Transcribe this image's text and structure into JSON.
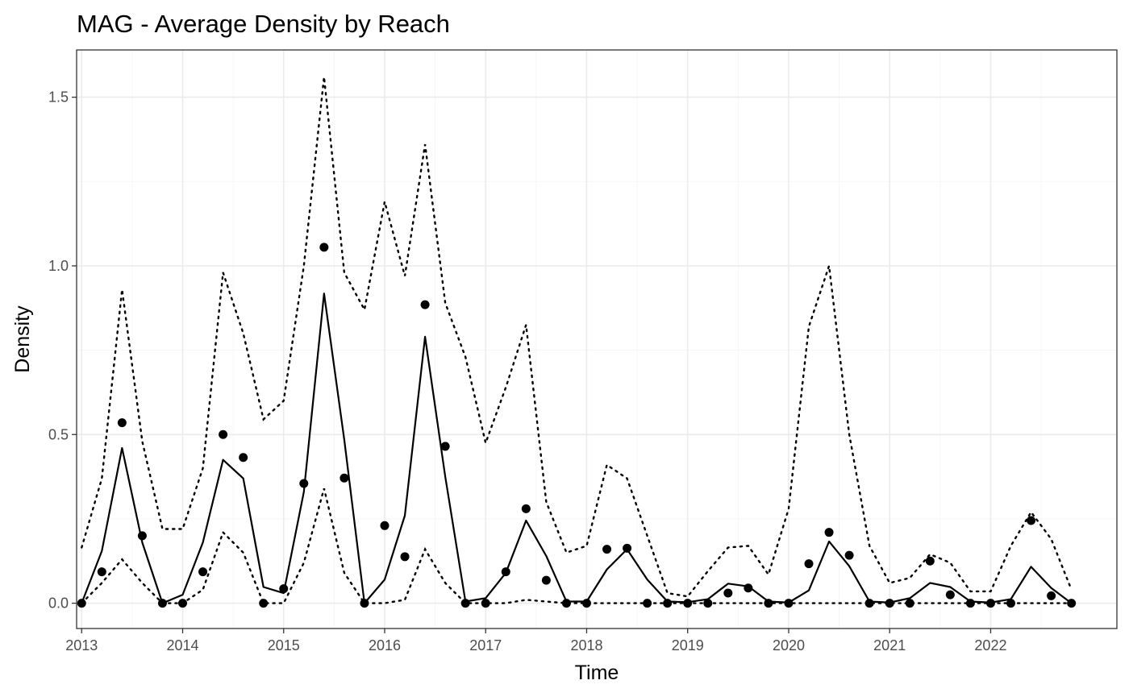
{
  "chart_data": {
    "type": "line",
    "title": "MAG - Average Density by Reach",
    "xlabel": "Time",
    "ylabel": "Density",
    "xlim": [
      2012.95,
      2023.25
    ],
    "ylim": [
      -0.075,
      1.64
    ],
    "x_ticks": [
      2013,
      2014,
      2015,
      2016,
      2017,
      2018,
      2019,
      2020,
      2021,
      2022
    ],
    "x_tick_labels": [
      "2013",
      "2014",
      "2015",
      "2016",
      "2017",
      "2018",
      "2019",
      "2020",
      "2021",
      "2022"
    ],
    "y_ticks": [
      0.0,
      0.5,
      1.0,
      1.5
    ],
    "y_tick_labels": [
      "0.0",
      "0.5",
      "1.0",
      "1.5"
    ],
    "grid": true,
    "legend": "none",
    "x": [
      2013.0,
      2013.2,
      2013.4,
      2013.6,
      2013.8,
      2014.0,
      2014.2,
      2014.4,
      2014.6,
      2014.8,
      2015.0,
      2015.2,
      2015.4,
      2015.6,
      2015.8,
      2016.0,
      2016.2,
      2016.4,
      2016.6,
      2016.8,
      2017.0,
      2017.2,
      2017.4,
      2017.6,
      2017.8,
      2018.0,
      2018.2,
      2018.4,
      2018.6,
      2018.8,
      2019.0,
      2019.2,
      2019.4,
      2019.6,
      2019.8,
      2020.0,
      2020.2,
      2020.4,
      2020.6,
      2020.8,
      2021.0,
      2021.2,
      2021.4,
      2021.6,
      2021.8,
      2022.0,
      2022.2,
      2022.4,
      2022.6,
      2022.8
    ],
    "series": [
      {
        "style": "points",
        "values": [
          0.0,
          0.093,
          0.535,
          0.2,
          0.0,
          0.0,
          0.093,
          0.5,
          0.432,
          0.0,
          0.043,
          0.355,
          1.055,
          0.371,
          0.0,
          0.23,
          0.138,
          0.885,
          0.465,
          0.0,
          0.0,
          0.093,
          0.28,
          0.068,
          0.0,
          0.0,
          0.16,
          0.163,
          0.0,
          0.0,
          0.0,
          0.0,
          0.03,
          0.045,
          0.0,
          0.0,
          0.117,
          0.21,
          0.142,
          0.0,
          0.0,
          0.0,
          0.125,
          0.025,
          0.0,
          0.0,
          0.0,
          0.245,
          0.022,
          0.0
        ]
      },
      {
        "style": "solid",
        "values": [
          0.0,
          0.155,
          0.46,
          0.18,
          0.0,
          0.025,
          0.18,
          0.425,
          0.37,
          0.048,
          0.03,
          0.33,
          0.918,
          0.485,
          0.0,
          0.07,
          0.26,
          0.79,
          0.375,
          0.005,
          0.015,
          0.09,
          0.245,
          0.14,
          0.005,
          0.005,
          0.1,
          0.16,
          0.07,
          0.005,
          0.003,
          0.012,
          0.058,
          0.05,
          0.005,
          0.002,
          0.038,
          0.183,
          0.11,
          0.005,
          0.002,
          0.015,
          0.06,
          0.048,
          0.005,
          0.002,
          0.012,
          0.108,
          0.045,
          0.0
        ]
      },
      {
        "style": "dotted",
        "values": [
          0.165,
          0.37,
          0.93,
          0.48,
          0.22,
          0.22,
          0.4,
          0.98,
          0.8,
          0.545,
          0.6,
          1.0,
          1.56,
          0.98,
          0.87,
          1.19,
          0.97,
          1.36,
          0.89,
          0.73,
          0.475,
          0.64,
          0.825,
          0.3,
          0.15,
          0.17,
          0.41,
          0.37,
          0.2,
          0.03,
          0.02,
          0.095,
          0.165,
          0.17,
          0.085,
          0.28,
          0.82,
          1.0,
          0.5,
          0.17,
          0.06,
          0.075,
          0.145,
          0.12,
          0.035,
          0.035,
          0.17,
          0.27,
          0.19,
          0.04
        ]
      },
      {
        "style": "dotted",
        "values": [
          0.0,
          0.06,
          0.13,
          0.06,
          0.0,
          0.0,
          0.04,
          0.21,
          0.15,
          0.0,
          0.0,
          0.12,
          0.34,
          0.09,
          0.0,
          0.0,
          0.01,
          0.16,
          0.06,
          0.0,
          0.0,
          0.0,
          0.01,
          0.005,
          0.0,
          0.0,
          0.0,
          0.0,
          0.0,
          0.0,
          0.0,
          0.0,
          0.0,
          0.0,
          0.0,
          0.0,
          0.0,
          0.0,
          0.0,
          0.0,
          0.0,
          0.0,
          0.0,
          0.0,
          0.0,
          0.0,
          0.0,
          0.0,
          0.0,
          0.0
        ]
      }
    ]
  }
}
